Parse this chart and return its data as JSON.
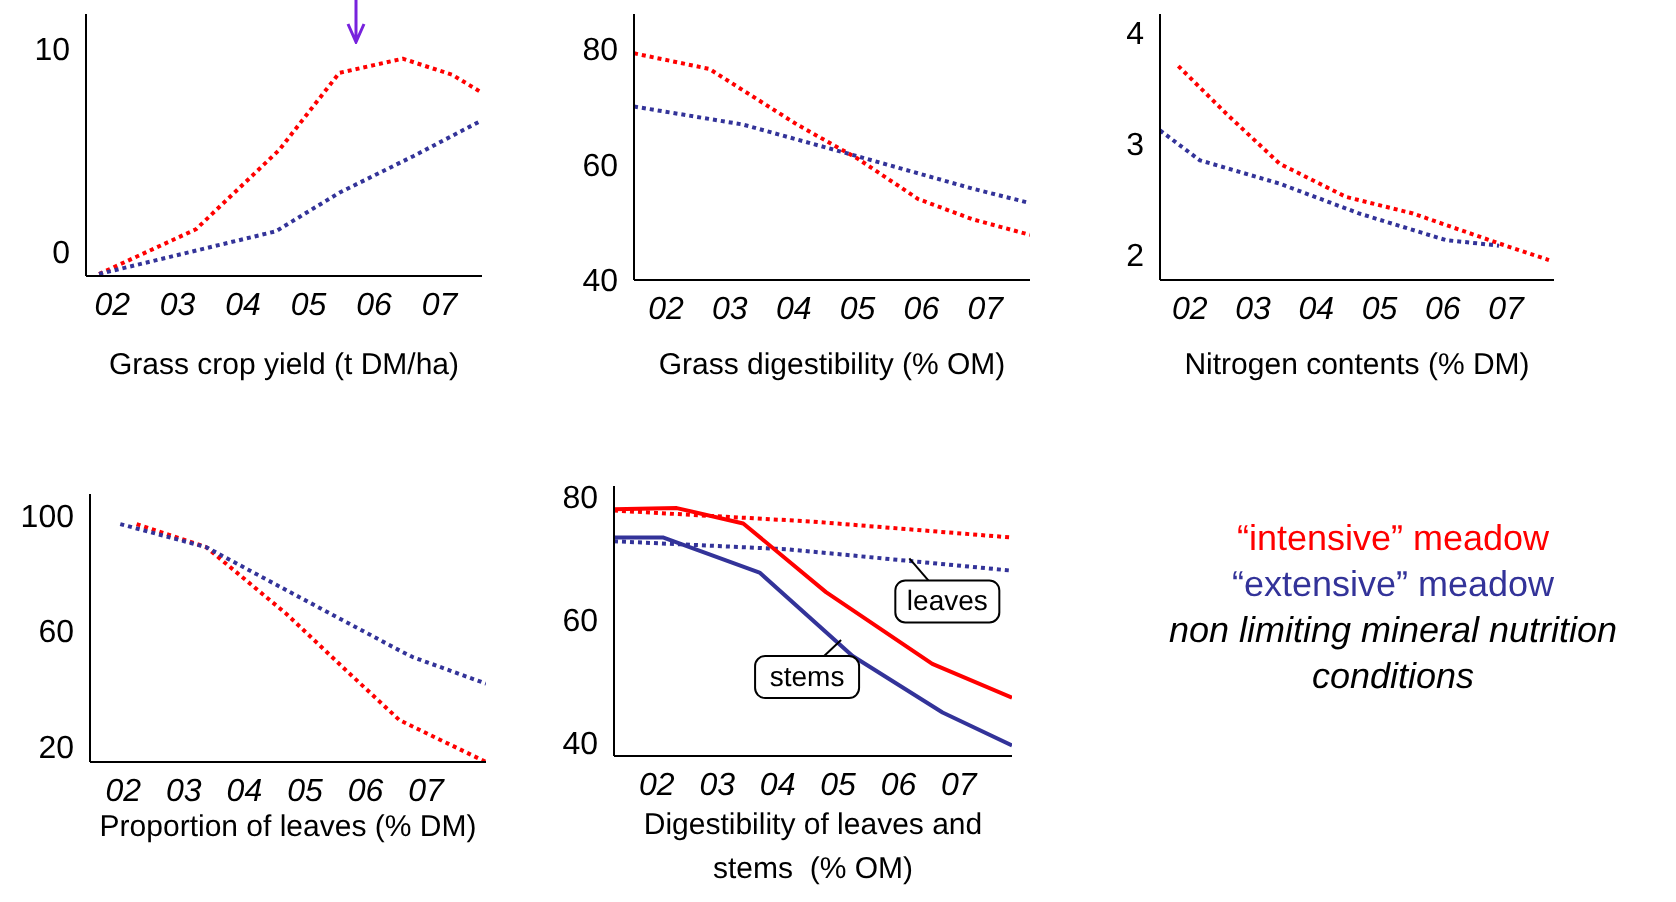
{
  "chart_data": [
    {
      "type": "line",
      "xlabel": "Grass crop yield (t DM/ha)",
      "line_style": "dotted",
      "xlim": [
        1.6,
        7.65
      ],
      "xticks": [
        {
          "value": 2,
          "label": "02"
        },
        {
          "value": 3,
          "label": "03"
        },
        {
          "value": 4,
          "label": "04"
        },
        {
          "value": 5,
          "label": "05"
        },
        {
          "value": 6,
          "label": "06"
        },
        {
          "value": 7,
          "label": "07"
        }
      ],
      "ylim": [
        -1.2,
        11.7
      ],
      "yticks": [
        0,
        10
      ],
      "series": [
        {
          "color": "#ff0000",
          "x": [
            1.8,
            3.28,
            4.55,
            5.47,
            6.44,
            7.2,
            7.61
          ],
          "values": [
            -1.1,
            1.1,
            5.0,
            8.8,
            9.5,
            8.7,
            7.9
          ]
        },
        {
          "color": "#333399",
          "x": [
            1.8,
            4.5,
            5.47,
            6.6,
            7.61
          ],
          "values": [
            -1.1,
            1.0,
            2.9,
            4.7,
            6.4
          ]
        }
      ]
    },
    {
      "type": "line",
      "xlabel": "Grass digestibility (% OM)",
      "line_style": "dotted",
      "xlim": [
        1.5,
        7.7
      ],
      "xticks": [
        {
          "value": 2,
          "label": "02"
        },
        {
          "value": 3,
          "label": "03"
        },
        {
          "value": 4,
          "label": "04"
        },
        {
          "value": 5,
          "label": "05"
        },
        {
          "value": 6,
          "label": "06"
        },
        {
          "value": 7,
          "label": "07"
        }
      ],
      "ylim": [
        40,
        86
      ],
      "yticks": [
        40,
        60,
        80
      ],
      "series": [
        {
          "color": "#ff0000",
          "x": [
            1.5,
            2.68,
            4.05,
            5.0,
            5.95,
            6.8,
            7.7
          ],
          "values": [
            79.2,
            76.5,
            66.9,
            61,
            54,
            50.5,
            47.8
          ]
        },
        {
          "color": "#333399",
          "x": [
            1.5,
            3.2,
            5.0,
            6.8,
            7.7
          ],
          "values": [
            70,
            66.9,
            61.4,
            55.8,
            53.3
          ]
        }
      ]
    },
    {
      "type": "line",
      "xlabel": "Nitrogen contents (% DM)",
      "line_style": "dotted",
      "xlim": [
        1.53,
        7.76
      ],
      "xticks": [
        {
          "value": 2,
          "label": "02"
        },
        {
          "value": 3,
          "label": "03"
        },
        {
          "value": 4,
          "label": "04"
        },
        {
          "value": 5,
          "label": "05"
        },
        {
          "value": 6,
          "label": "06"
        },
        {
          "value": 7,
          "label": "07"
        }
      ],
      "ylim": [
        1.77,
        4.17
      ],
      "yticks": [
        2,
        3,
        4
      ],
      "series": [
        {
          "color": "#ff0000",
          "x": [
            1.82,
            2.58,
            3.42,
            4.47,
            5.53,
            6.89,
            7.68
          ],
          "values": [
            3.7,
            3.27,
            2.82,
            2.52,
            2.37,
            2.1,
            1.95
          ]
        },
        {
          "color": "#333399",
          "x": [
            1.53,
            2.16,
            3.42,
            4.68,
            6.05,
            6.89
          ],
          "values": [
            3.12,
            2.85,
            2.64,
            2.37,
            2.13,
            2.08
          ]
        }
      ]
    },
    {
      "type": "line",
      "xlabel": "Proportion of leaves (% DM)",
      "line_style": "dotted",
      "xlim": [
        1.45,
        7.99
      ],
      "xticks": [
        {
          "value": 2,
          "label": "02"
        },
        {
          "value": 3,
          "label": "03"
        },
        {
          "value": 4,
          "label": "04"
        },
        {
          "value": 5,
          "label": "05"
        },
        {
          "value": 6,
          "label": "06"
        },
        {
          "value": 7,
          "label": "07"
        }
      ],
      "ylim": [
        14.7,
        107.4
      ],
      "yticks": [
        20,
        60,
        100
      ],
      "series": [
        {
          "color": "#ff0000",
          "x": [
            2.22,
            3.37,
            4.69,
            5.68,
            6.56,
            7.99
          ],
          "values": [
            97,
            89,
            66,
            46.4,
            29.2,
            14.7
          ]
        },
        {
          "color": "#333399",
          "x": [
            1.95,
            3.37,
            4.91,
            6.56,
            6.78,
            7.99
          ],
          "values": [
            97,
            89,
            71.7,
            53.3,
            51,
            41.8
          ]
        }
      ]
    },
    {
      "type": "line",
      "xlabel": "Digestibility of leaves and stems  (% OM)",
      "line_style": "dotted",
      "xlim": [
        1.29,
        7.88
      ],
      "xticks": [
        {
          "value": 2,
          "label": "02"
        },
        {
          "value": 3,
          "label": "03"
        },
        {
          "value": 4,
          "label": "04"
        },
        {
          "value": 5,
          "label": "05"
        },
        {
          "value": 6,
          "label": "06"
        },
        {
          "value": 7,
          "label": "07"
        }
      ],
      "ylim": [
        37.8,
        81.8
      ],
      "yticks": [
        40,
        60,
        80
      ],
      "annotations": [
        {
          "text": "leaves",
          "x": 6.18,
          "y": 70
        },
        {
          "text": "stems",
          "x": 5.05,
          "y": 56.7
        }
      ],
      "series": [
        {
          "color": "#ff0000",
          "x": [
            1.29,
            4.58,
            7.88
          ],
          "values": [
            77.8,
            76,
            73.4
          ]
        },
        {
          "color": "#333399",
          "x": [
            1.29,
            4.14,
            7.88
          ],
          "values": [
            72.8,
            71.5,
            68.0
          ]
        },
        {
          "color": "#ff0000",
          "line_style": "solid",
          "x": [
            1.29,
            2.33,
            3.43,
            4.8,
            6.56,
            7.88
          ],
          "values": [
            78.0,
            78.2,
            75.7,
            64.5,
            52.8,
            47.3
          ]
        },
        {
          "color": "#333399",
          "line_style": "solid",
          "x": [
            1.29,
            2.11,
            3.7,
            5.24,
            6.73,
            7.88
          ],
          "values": [
            73.4,
            73.4,
            67.7,
            54.1,
            44.9,
            39.5
          ]
        }
      ]
    },
    {
      "type": "other",
      "series": [
        {
          "name": "“intensive” meadow",
          "color": "#ff0000"
        },
        {
          "name": "“extensive” meadow",
          "color": "#333399"
        }
      ],
      "annotations": [
        "non limiting mineral nutrition conditions"
      ]
    }
  ]
}
